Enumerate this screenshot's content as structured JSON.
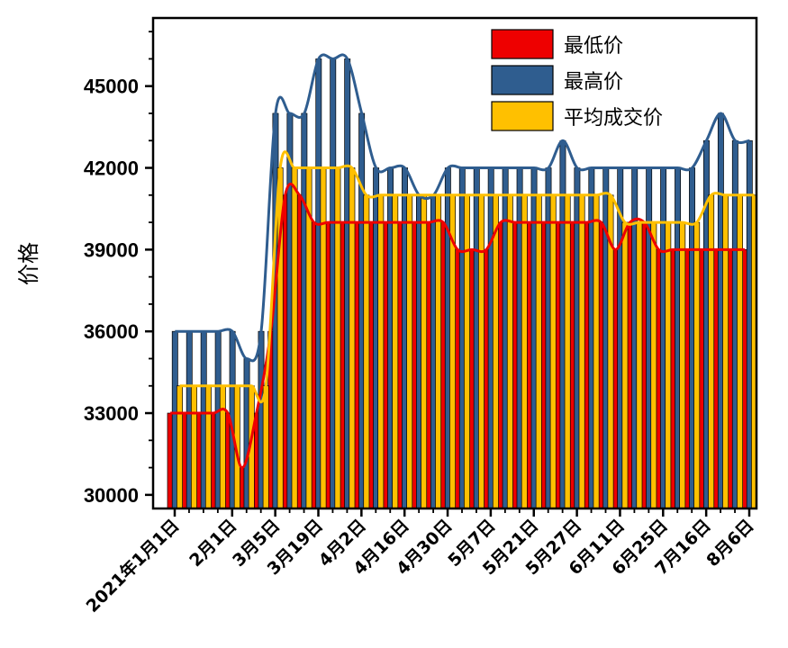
{
  "chart_data": {
    "type": "bar",
    "title": "",
    "xlabel": "",
    "ylabel": "价格",
    "ylim": [
      29500,
      47500
    ],
    "yticks": [
      30000,
      33000,
      36000,
      39000,
      42000,
      45000
    ],
    "grid": false,
    "legend_position": "top-right",
    "categories": [
      "2021年1月1日",
      "",
      "",
      "",
      "2月1日",
      "",
      "",
      "3月5日",
      "",
      "",
      "3月19日",
      "",
      "",
      "4月2日",
      "",
      "",
      "4月16日",
      "",
      "",
      "4月30日",
      "",
      "",
      "5月7日",
      "",
      "",
      "5月21日",
      "",
      "",
      "5月27日",
      "",
      "",
      "6月11日",
      "",
      "",
      "6月25日",
      "",
      "",
      "7月16日",
      "",
      "",
      "8月6日"
    ],
    "x_tick_labels": [
      "2021年1月1日",
      "2月1日",
      "3月5日",
      "3月19日",
      "4月2日",
      "4月16日",
      "4月30日",
      "5月7日",
      "5月21日",
      "5月27日",
      "6月11日",
      "6月25日",
      "7月16日",
      "8月6日"
    ],
    "series": [
      {
        "name": "最低价",
        "color": "#ee0000",
        "values": [
          33000,
          33000,
          33000,
          33000,
          33000,
          31000,
          33000,
          36000,
          41000,
          41000,
          40000,
          40000,
          40000,
          40000,
          40000,
          40000,
          40000,
          40000,
          40000,
          40000,
          39000,
          39000,
          39000,
          40000,
          40000,
          40000,
          40000,
          40000,
          40000,
          40000,
          40000,
          39000,
          40000,
          40000,
          39000,
          39000,
          39000,
          39000,
          39000,
          39000,
          39000
        ]
      },
      {
        "name": "最高价",
        "color": "#2f5d8f",
        "values": [
          36000,
          36000,
          36000,
          36000,
          36000,
          35000,
          36000,
          44000,
          44000,
          44000,
          46000,
          46000,
          46000,
          44000,
          42000,
          42000,
          42000,
          41000,
          41000,
          42000,
          42000,
          42000,
          42000,
          42000,
          42000,
          42000,
          42000,
          43000,
          42000,
          42000,
          42000,
          42000,
          42000,
          42000,
          42000,
          42000,
          42000,
          43000,
          44000,
          43000,
          43000
        ]
      },
      {
        "name": "平均成交价",
        "color": "#ffc000",
        "values": [
          34000,
          34000,
          34000,
          34000,
          34000,
          34000,
          34000,
          42000,
          42000,
          42000,
          42000,
          42000,
          42000,
          41000,
          41000,
          41000,
          41000,
          41000,
          41000,
          41000,
          41000,
          41000,
          41000,
          41000,
          41000,
          41000,
          41000,
          41000,
          41000,
          41000,
          41000,
          40000,
          40000,
          40000,
          40000,
          40000,
          40000,
          41000,
          41000,
          41000,
          41000
        ]
      }
    ]
  }
}
